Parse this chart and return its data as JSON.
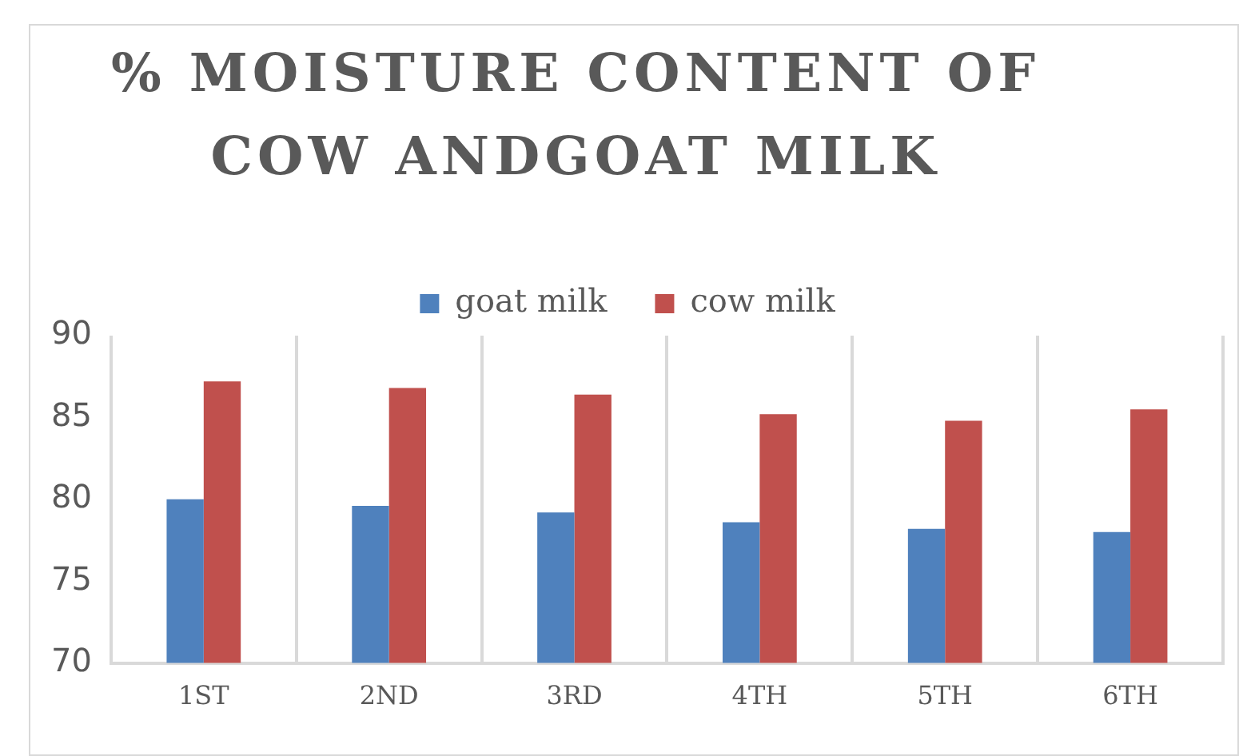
{
  "chart_data": {
    "type": "bar",
    "title": "% MOISTURE CONTENT OF COW ANDGOAT MILK",
    "categories": [
      "1ST",
      "2ND",
      "3RD",
      "4TH",
      "5TH",
      "6TH"
    ],
    "series": [
      {
        "name": "goat milk",
        "color": "#4f81bd",
        "values": [
          80.0,
          79.6,
          79.2,
          78.6,
          78.2,
          78.0
        ]
      },
      {
        "name": "cow milk",
        "color": "#c0504d",
        "values": [
          87.2,
          86.8,
          86.4,
          85.2,
          84.8,
          85.5
        ]
      }
    ],
    "ylim": [
      70,
      90
    ],
    "yticks": [
      70,
      75,
      80,
      85,
      90
    ],
    "grid": "x",
    "legend": "top"
  }
}
